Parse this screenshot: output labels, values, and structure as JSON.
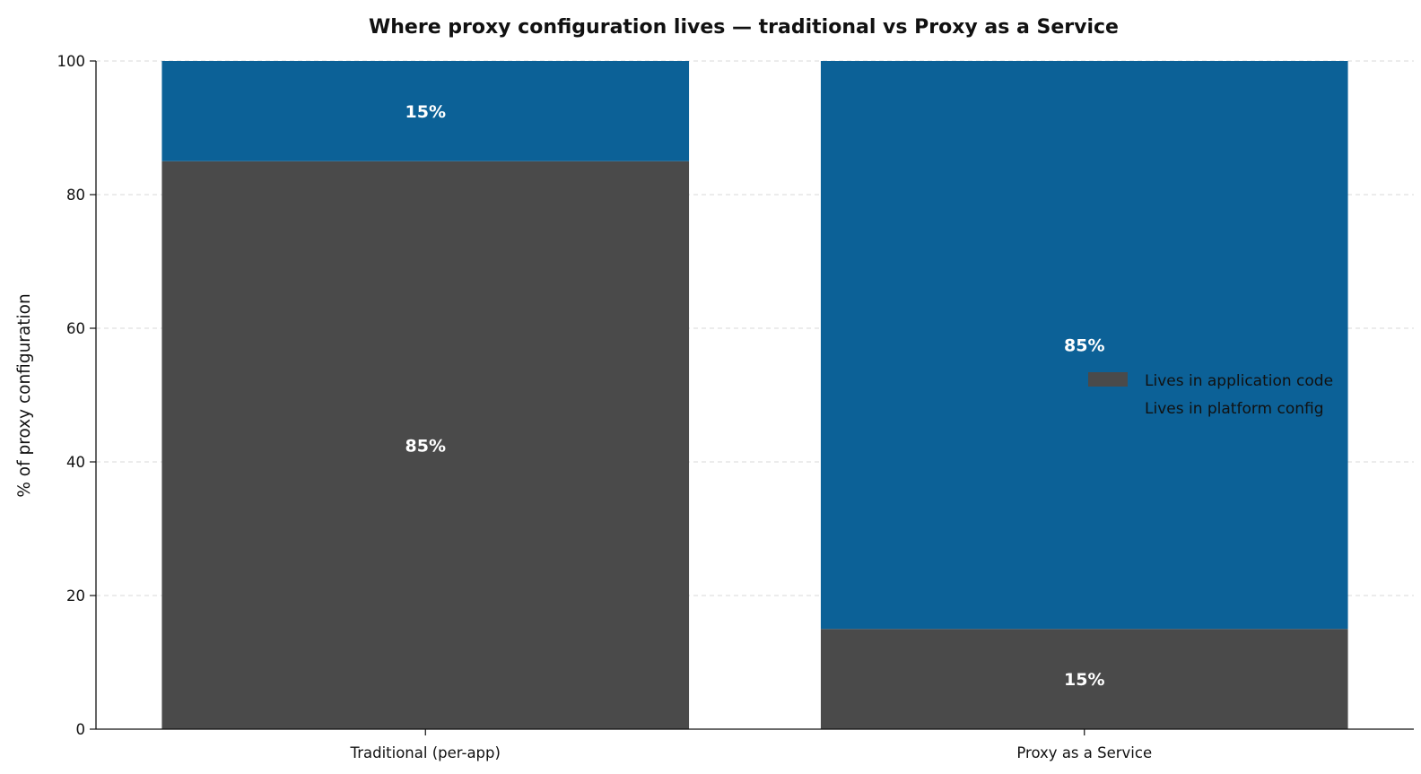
{
  "chart_data": {
    "type": "bar",
    "stacked": true,
    "title": "Where proxy configuration lives — traditional vs Proxy as a Service",
    "xlabel": "",
    "ylabel": "% of proxy configuration",
    "categories": [
      "Traditional (per-app)",
      "Proxy as a Service"
    ],
    "series": [
      {
        "name": "Lives in application code",
        "values": [
          85,
          15
        ],
        "labels": [
          "85%",
          "15%"
        ],
        "color": "#4a4a4a"
      },
      {
        "name": "Lives in platform config",
        "values": [
          15,
          85
        ],
        "labels": [
          "15%",
          "85%"
        ],
        "color": "#0c6197"
      }
    ],
    "ylim": [
      0,
      100
    ],
    "yticks": [
      0,
      20,
      40,
      60,
      80,
      100
    ],
    "grid": "horizontal dashed",
    "legend_position": "center-right"
  }
}
